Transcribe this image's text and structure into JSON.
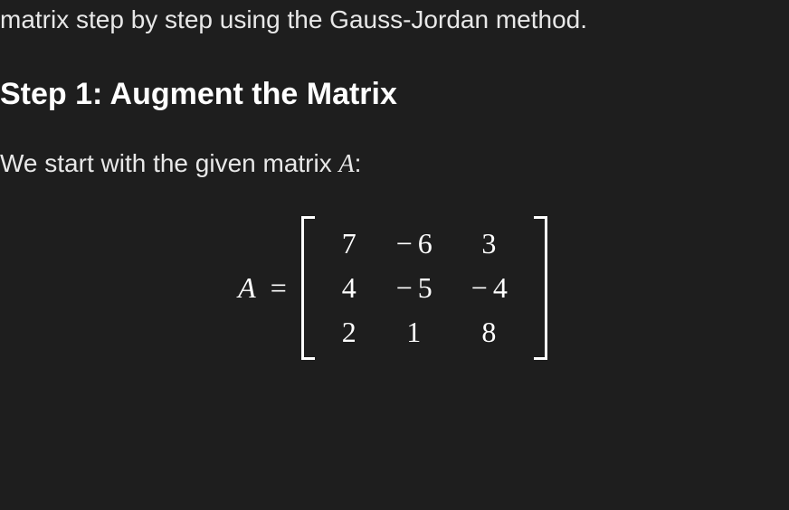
{
  "intro": "matrix step by step using the Gauss-Jordan method.",
  "heading": "Step 1: Augment the Matrix",
  "subtext_prefix": "We start with the given matrix ",
  "subtext_var": "A",
  "subtext_suffix": ":",
  "equation": {
    "lhs_var": "A",
    "equals": "=",
    "matrix": {
      "type": "matrix",
      "rows": [
        [
          "7",
          "− 6",
          "3"
        ],
        [
          "4",
          "− 5",
          "− 4"
        ],
        [
          "2",
          "1",
          "8"
        ]
      ],
      "bracket_color": "#ffffff",
      "cell_fontsize": 32,
      "cell_color": "#ffffff"
    }
  },
  "colors": {
    "background": "#1e1e1e",
    "text": "#e8e8e8",
    "heading": "#ffffff"
  },
  "typography": {
    "body_fontsize": 28,
    "heading_fontsize": 34,
    "heading_weight": 700,
    "math_font": "Georgia, Times New Roman, serif"
  }
}
